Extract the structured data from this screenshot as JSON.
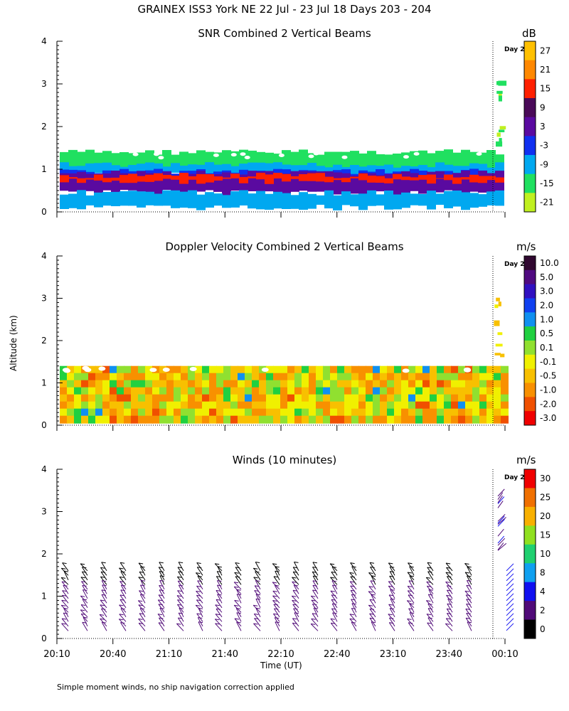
{
  "header": {
    "title": "GRAINEX ISS3 York NE  22 Jul - 23 Jul 18 Days 203 - 204"
  },
  "footer": {
    "note": "Simple moment winds, no ship navigation correction applied"
  },
  "axes": {
    "ylabel": "Altitude (km)",
    "xlabel": "Time (UT)",
    "yticks": [
      "0",
      "1",
      "2",
      "3",
      "4"
    ],
    "xticks": [
      "20:10",
      "20:40",
      "21:10",
      "21:40",
      "22:10",
      "22:40",
      "23:10",
      "23:40",
      "00:10"
    ],
    "day_marker": "Day 2"
  },
  "chart_data": [
    {
      "type": "heatmap",
      "title": "SNR Combined 2 Vertical Beams",
      "units": "dB",
      "colorbar_ticks": [
        "27",
        "21",
        "15",
        "9",
        "3",
        "-3",
        "-9",
        "-15",
        "-21"
      ],
      "colorbar_colors": [
        "#ffc000",
        "#ff8800",
        "#ff2000",
        "#4a0a58",
        "#5a0aa0",
        "#1030f0",
        "#00a8f0",
        "#20e060",
        "#c0f020"
      ],
      "ylim": [
        0,
        4
      ],
      "layers": [
        {
          "name": "top",
          "from_km": 1.0,
          "to_km": 1.4,
          "color": "#20e060"
        },
        {
          "name": "upper",
          "from_km": 0.85,
          "to_km": 1.1,
          "color": "#00a8f0"
        },
        {
          "name": "blue",
          "from_km": 0.55,
          "to_km": 0.95,
          "color": "#1030f0"
        },
        {
          "name": "purple",
          "from_km": 0.45,
          "to_km": 0.9,
          "color": "#5a0aa0"
        },
        {
          "name": "red band",
          "from_km": 0.72,
          "to_km": 0.85,
          "color": "#ff2000"
        },
        {
          "name": "lower",
          "from_km": 0.1,
          "to_km": 0.45,
          "color": "#00a8f0"
        }
      ]
    },
    {
      "type": "heatmap",
      "title": "Doppler Velocity Combined 2 Vertical Beams",
      "units": "m/s",
      "colorbar_ticks": [
        "10.0",
        "5.0",
        "3.0",
        "2.0",
        "1.0",
        "0.5",
        "0.1",
        "-0.1",
        "-0.5",
        "-1.0",
        "-2.0",
        "-3.0"
      ],
      "colorbar_colors": [
        "#300830",
        "#500a80",
        "#3010c0",
        "#1040f0",
        "#1090f0",
        "#20d040",
        "#90e030",
        "#f0f000",
        "#f8c000",
        "#f89000",
        "#f05000",
        "#f00000"
      ],
      "ylim": [
        0,
        4
      ],
      "field_top_km": 1.4
    },
    {
      "type": "scatter",
      "title": "Winds (10 minutes)",
      "units": "m/s",
      "colorbar_ticks": [
        "30",
        "25",
        "20",
        "15",
        "10",
        "8",
        "4",
        "2",
        "0"
      ],
      "colorbar_colors": [
        "#f00000",
        "#f07000",
        "#f8b000",
        "#90e020",
        "#20d070",
        "#10a0f0",
        "#1010f0",
        "#500a78",
        "#000000"
      ],
      "ylim": [
        0,
        4
      ],
      "barb_top_km": 1.6
    }
  ]
}
